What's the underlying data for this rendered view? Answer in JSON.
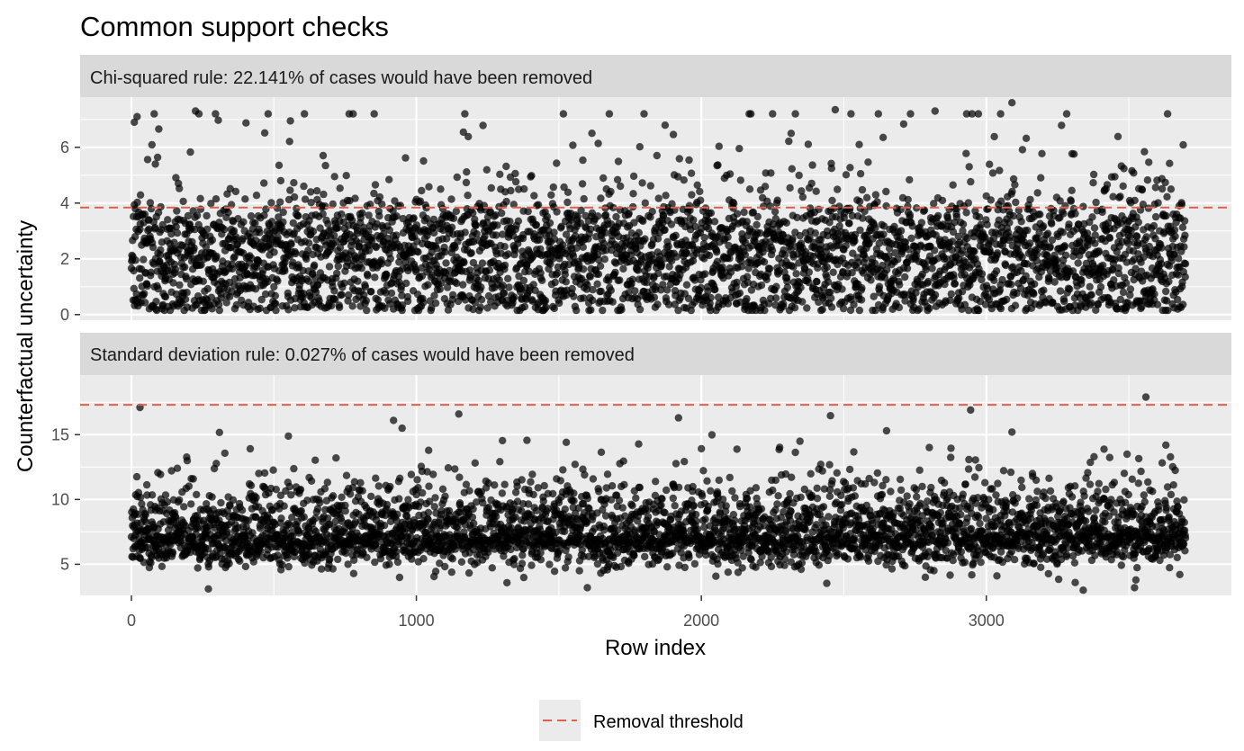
{
  "chart_data": {
    "type": "scatter",
    "title": "Common support checks",
    "xlabel": "Row index",
    "ylabel": "Counterfactual uncertainty",
    "xlim": [
      -180,
      3860
    ],
    "x_ticks": [
      0,
      1000,
      2000,
      3000
    ],
    "x_tick_labels": [
      "0",
      "1000",
      "2000",
      "3000"
    ],
    "n_points_per_panel": 3700,
    "grid": true,
    "point_color": "#000000",
    "point_opacity": 0.7,
    "threshold_color": "#E0614B",
    "legend": {
      "position": "bottom",
      "entries": [
        {
          "label": "Removal threshold",
          "style": "dashed",
          "color": "#E0614B"
        }
      ]
    },
    "panels": [
      {
        "strip_label": "Chi-squared rule: 22.141% of cases would have been removed",
        "ylim": [
          -0.2,
          7.8
        ],
        "y_ticks": [
          0,
          2,
          4,
          6
        ],
        "y_tick_labels": [
          "0",
          "2",
          "4",
          "6"
        ],
        "threshold": 3.84,
        "distribution": {
          "kind": "chisq-like",
          "center": 2.6,
          "spread": 1.5,
          "min": 0.15,
          "max": 7.6
        },
        "notable_points": [
          {
            "x": 10,
            "y": 6.9
          },
          {
            "x": 20,
            "y": 7.1
          },
          {
            "x": 225,
            "y": 7.3
          },
          {
            "x": 480,
            "y": 7.2
          },
          {
            "x": 2470,
            "y": 7.35
          },
          {
            "x": 2820,
            "y": 7.3
          },
          {
            "x": 2950,
            "y": 7.2
          },
          {
            "x": 3050,
            "y": 7.2
          },
          {
            "x": 3090,
            "y": 7.6
          },
          {
            "x": 920,
            "y": 0.2
          },
          {
            "x": 1940,
            "y": 0.25
          },
          {
            "x": 3280,
            "y": 0.2
          },
          {
            "x": 3490,
            "y": 0.25
          }
        ]
      },
      {
        "strip_label": "Standard deviation rule: 0.027% of cases would have been removed",
        "ylim": [
          2.6,
          19.6
        ],
        "y_ticks": [
          5,
          10,
          15
        ],
        "y_tick_labels": [
          "5",
          "10",
          "15"
        ],
        "threshold": 17.3,
        "distribution": {
          "kind": "right-skewed",
          "center": 7.2,
          "spread": 1.6,
          "min": 3.0,
          "max": 17.9
        },
        "notable_points": [
          {
            "x": 30,
            "y": 17.1
          },
          {
            "x": 3560,
            "y": 17.9
          },
          {
            "x": 2945,
            "y": 16.9
          },
          {
            "x": 920,
            "y": 16.1
          },
          {
            "x": 1920,
            "y": 16.3
          },
          {
            "x": 950,
            "y": 15.5
          },
          {
            "x": 2650,
            "y": 15.3
          },
          {
            "x": 3090,
            "y": 15.2
          },
          {
            "x": 270,
            "y": 3.1
          },
          {
            "x": 1600,
            "y": 3.2
          },
          {
            "x": 3340,
            "y": 3.0
          },
          {
            "x": 3520,
            "y": 3.2
          }
        ]
      }
    ]
  }
}
